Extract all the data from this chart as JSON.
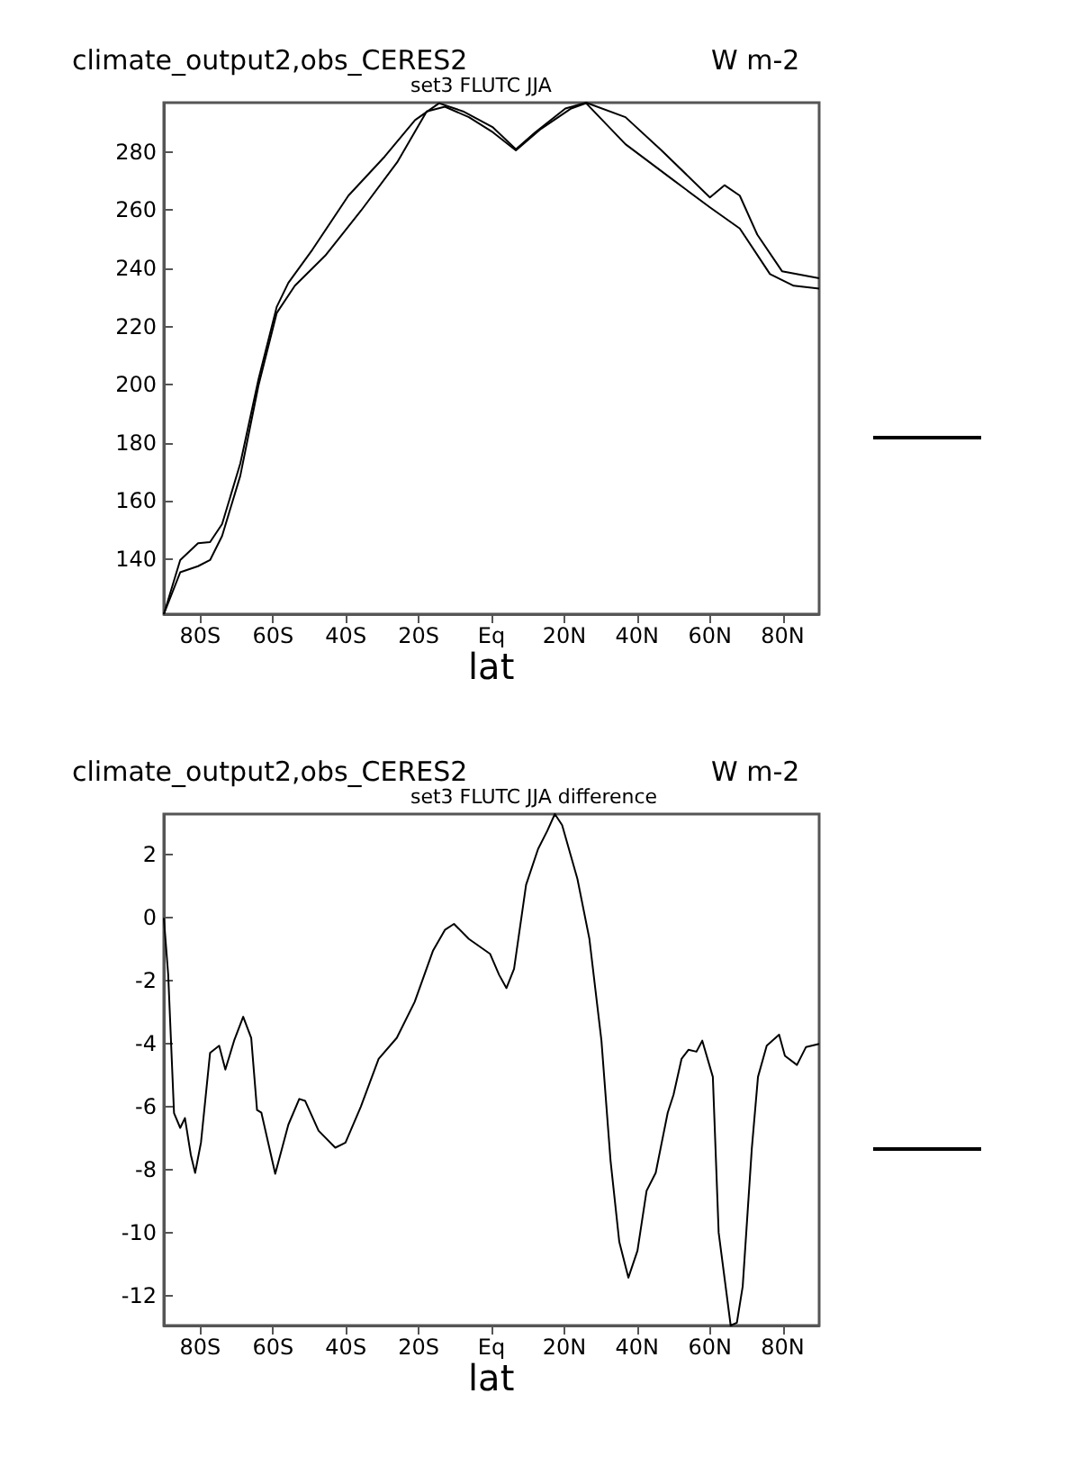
{
  "chart_data": [
    {
      "type": "line",
      "title": "climate_output2,obs_CERES2",
      "subtitle": "set3 FLUTC JJA",
      "ylabel": "W m-2",
      "xlabel": "lat",
      "marker": "none",
      "xlim": [
        -90,
        90
      ],
      "xticks": [
        {
          "value": -80,
          "label": "80S"
        },
        {
          "value": -60,
          "label": "60S"
        },
        {
          "value": -40,
          "label": "40S"
        },
        {
          "value": -20,
          "label": "20S"
        },
        {
          "value": 0,
          "label": "Eq"
        },
        {
          "value": 20,
          "label": "20N"
        },
        {
          "value": 40,
          "label": "40N"
        },
        {
          "value": 60,
          "label": "60N"
        },
        {
          "value": 80,
          "label": "80N"
        }
      ],
      "ylim": [
        121,
        297
      ],
      "yticks": [
        140,
        160,
        180,
        200,
        220,
        240,
        260,
        280
      ],
      "series": [
        {
          "color": "#000000",
          "x": [
            -90,
            -85.5,
            -80.6,
            -77.3,
            -74,
            -69,
            -64,
            -59,
            -55.8,
            -49.2,
            -39.3,
            -29.3,
            -21,
            -14.4,
            -7.8,
            0.4,
            6.7,
            12,
            20.3,
            26,
            36.8,
            46.7,
            60,
            64,
            68.2,
            73,
            79.8,
            90
          ],
          "values": [
            121,
            139.6,
            145.4,
            145.8,
            152,
            172.8,
            201.8,
            226.7,
            235,
            246.4,
            265,
            278.5,
            291,
            296.8,
            294,
            288.5,
            281,
            286.8,
            295,
            297,
            292,
            280.6,
            264.4,
            268.6,
            265,
            251.6,
            239,
            236.6
          ]
        },
        {
          "color": "#000000",
          "x": [
            -90,
            -85.5,
            -80.6,
            -77.3,
            -74,
            -69,
            -64,
            -59,
            -54,
            -45.7,
            -35.8,
            -25.9,
            -17.8,
            -12.8,
            -6.2,
            0.4,
            6.7,
            13.6,
            21.9,
            26,
            36.8,
            50,
            60,
            68.2,
            76.5,
            83,
            90
          ],
          "values": [
            121,
            135.4,
            137.5,
            139.6,
            147.9,
            168.6,
            199.7,
            224.6,
            234,
            244.3,
            259.9,
            276.5,
            294,
            295.6,
            292,
            286.8,
            280.6,
            288,
            295,
            296.8,
            282.7,
            270.3,
            261,
            253.7,
            238,
            234,
            233
          ]
        }
      ]
    },
    {
      "type": "line",
      "title": "climate_output2,obs_CERES2",
      "subtitle": "set3 FLUTC JJA difference",
      "ylabel": "W m-2",
      "xlabel": "lat",
      "marker": "none",
      "xlim": [
        -90,
        90
      ],
      "xticks": [
        {
          "value": -80,
          "label": "80S"
        },
        {
          "value": -60,
          "label": "60S"
        },
        {
          "value": -40,
          "label": "40S"
        },
        {
          "value": -20,
          "label": "20S"
        },
        {
          "value": 0,
          "label": "Eq"
        },
        {
          "value": 20,
          "label": "20N"
        },
        {
          "value": 40,
          "label": "40N"
        },
        {
          "value": 60,
          "label": "60N"
        },
        {
          "value": 80,
          "label": "80N"
        }
      ],
      "ylim": [
        -12.95,
        3.3
      ],
      "yticks": [
        -12,
        -10,
        -8,
        -6,
        -4,
        -2,
        0,
        2
      ],
      "series": [
        {
          "color": "#000000",
          "x": [
            -90,
            -88.8,
            -87.2,
            -85.5,
            -84.2,
            -82.6,
            -81.4,
            -79.8,
            -77.3,
            -74.8,
            -73.1,
            -70.7,
            -68.2,
            -66,
            -64.4,
            -63.2,
            -59.4,
            -55.8,
            -52.8,
            -51.2,
            -47.5,
            -42.9,
            -40.1,
            -35.9,
            -31,
            -26,
            -21.1,
            -16.1,
            -12.8,
            -10.3,
            -6.2,
            -0.4,
            2.1,
            4.1,
            6.2,
            9.5,
            12.8,
            15.3,
            17.4,
            19.4,
            23.6,
            26.9,
            30.2,
            32.7,
            35.1,
            37.6,
            40.1,
            42.6,
            45.1,
            48.4,
            50,
            52.2,
            54.1,
            56.3,
            57.9,
            60.8,
            62.4,
            65.7,
            67.4,
            69,
            71.5,
            73.2,
            75.6,
            79,
            80.6,
            83.9,
            86.4,
            90
          ],
          "values": [
            0,
            -1.8,
            -6.2,
            -6.67,
            -6.36,
            -7.52,
            -8.1,
            -7.14,
            -4.29,
            -4.06,
            -4.82,
            -3.9,
            -3.14,
            -3.81,
            -6.1,
            -6.19,
            -8.13,
            -6.57,
            -5.75,
            -5.81,
            -6.76,
            -7.3,
            -7.14,
            -6,
            -4.48,
            -3.81,
            -2.67,
            -1.05,
            -0.38,
            -0.19,
            -0.67,
            -1.14,
            -1.81,
            -2.23,
            -1.62,
            1.05,
            2.19,
            2.76,
            3.3,
            2.95,
            1.24,
            -0.67,
            -3.9,
            -7.71,
            -10.29,
            -11.43,
            -10.57,
            -8.67,
            -8.1,
            -6.19,
            -5.62,
            -4.48,
            -4.19,
            -4.25,
            -3.9,
            -5.05,
            -10,
            -12.95,
            -12.86,
            -11.71,
            -7.33,
            -5.05,
            -4.06,
            -3.71,
            -4.38,
            -4.67,
            -4.1,
            -4
          ]
        }
      ]
    }
  ]
}
